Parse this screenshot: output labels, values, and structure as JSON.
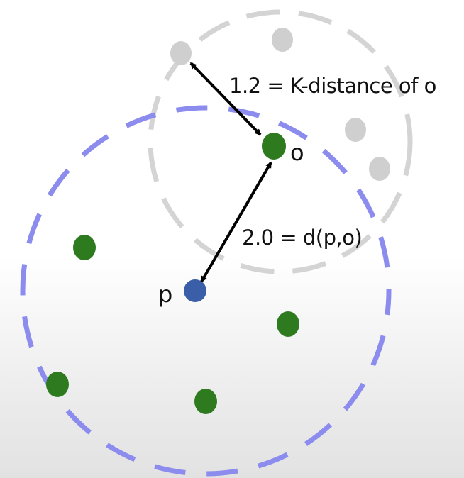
{
  "labels": {
    "k_distance": "1.2 = K-distance of o",
    "distance_po": "2.0 = d(p,o)",
    "point_o": "o",
    "point_p": "p"
  },
  "colors": {
    "gray_circle": "#d4d4d4",
    "gray_points": "#cfcfcf",
    "blue_circle": "#8c8cee",
    "green_points": "#2d7a1f",
    "point_p": "#3a5fa8",
    "arrow": "#000000"
  },
  "points": {
    "p": "blue",
    "o": "green",
    "neighbors_of_o": "gray",
    "neighbors_of_p": "green"
  }
}
